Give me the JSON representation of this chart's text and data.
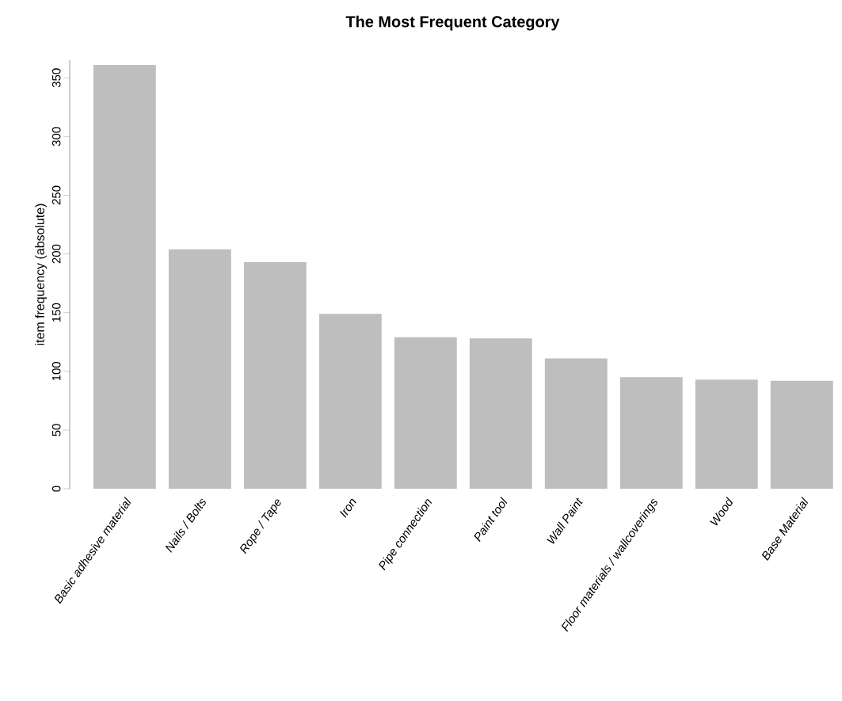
{
  "chart_data": {
    "type": "bar",
    "title": "The Most Frequent Category",
    "ylabel": "item frequency (absolute)",
    "categories": [
      "Basic adhesive material",
      "Nails / Bolts",
      "Rope / Tape",
      "Iron",
      "Pipe connection",
      "Paint tool",
      "Wall Paint",
      "Floor materials / wallcoverings",
      "Wood",
      "Base Material"
    ],
    "values": [
      361,
      204,
      193,
      149,
      129,
      128,
      111,
      95,
      93,
      92
    ],
    "color": "#bebebe",
    "ylim": [
      0,
      365
    ],
    "yticks": [
      0,
      50,
      100,
      150,
      200,
      250,
      300,
      350
    ]
  }
}
